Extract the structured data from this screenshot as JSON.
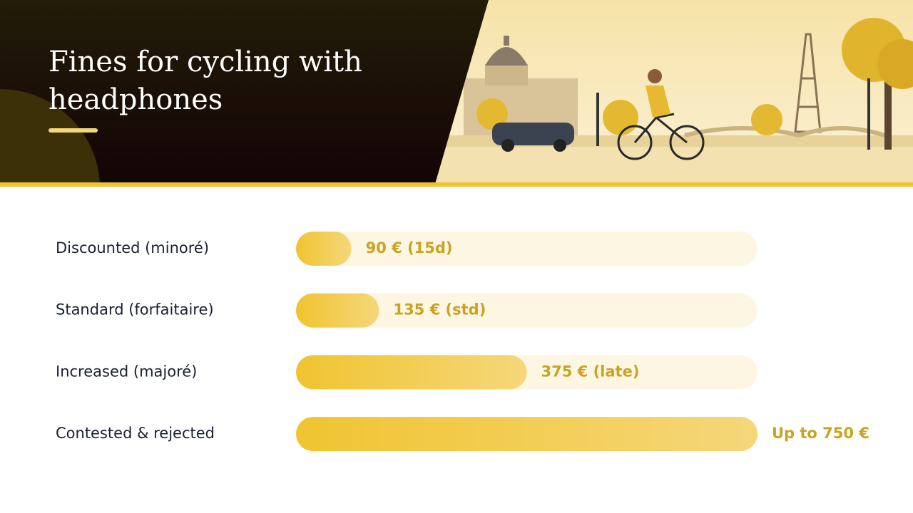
{
  "chart_data": {
    "type": "bar",
    "orientation": "horizontal",
    "title": "Fines for cycling with headphones",
    "categories": [
      "Discounted (minoré)",
      "Standard (forfaitaire)",
      "Increased (majoré)",
      "Contested & rejected"
    ],
    "values": [
      90,
      135,
      375,
      750
    ],
    "value_labels": [
      "90 € (15d)",
      "135 € (std)",
      "375 € (late)",
      "Up to 750 €"
    ],
    "color": "#f0c430",
    "xlim": [
      0,
      750
    ]
  }
}
